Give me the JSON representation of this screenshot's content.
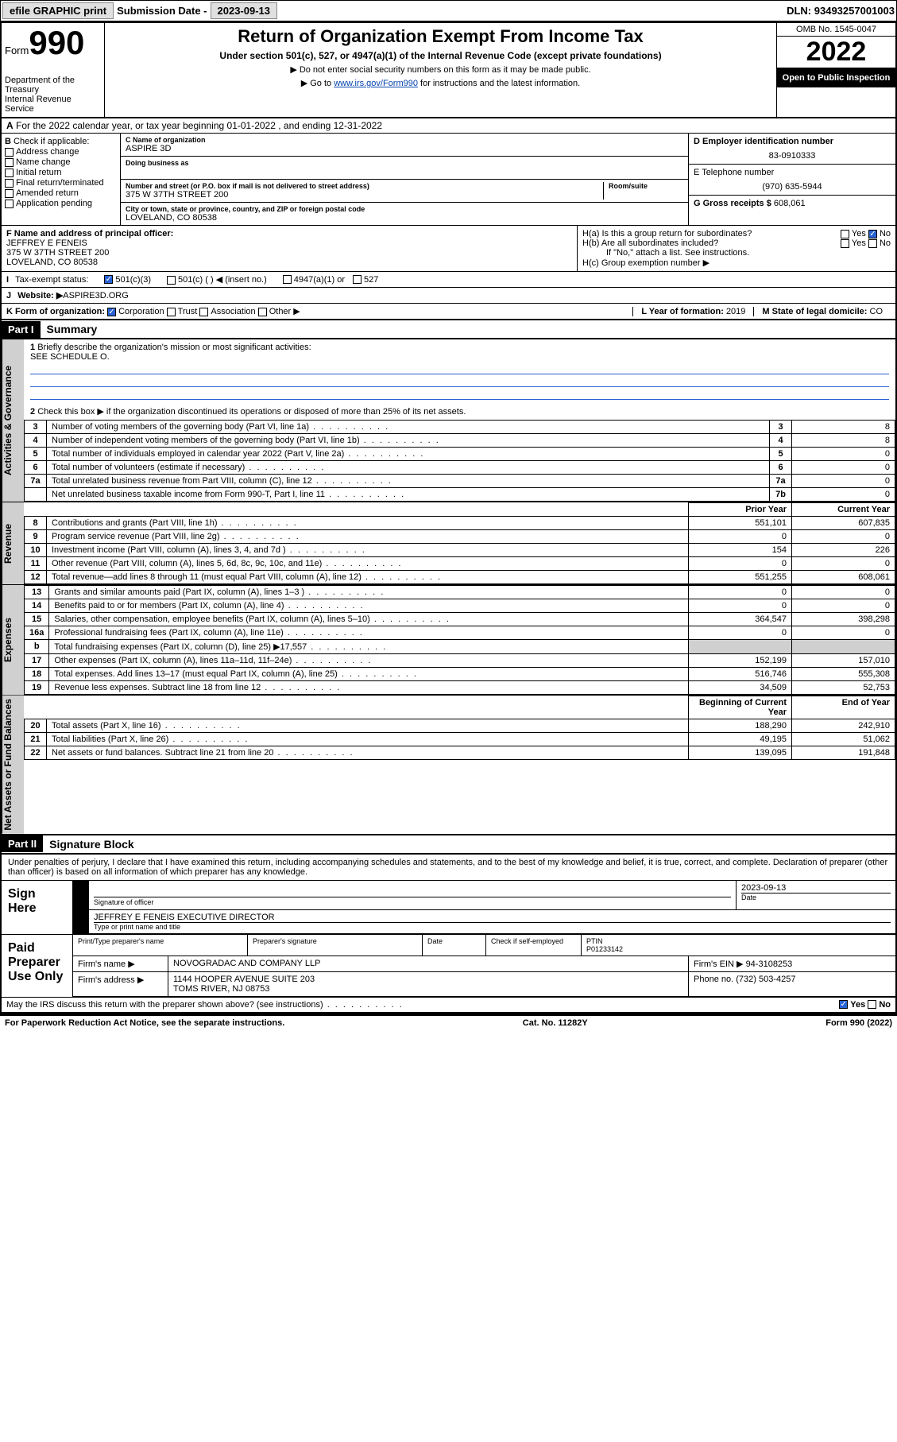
{
  "topbar": {
    "efile": "efile GRAPHIC print",
    "submission_label": "Submission Date - ",
    "submission_date": "2023-09-13",
    "dln_label": "DLN: ",
    "dln": "93493257001003"
  },
  "header": {
    "form_word": "Form",
    "form_num": "990",
    "dept": "Department of the Treasury",
    "irs": "Internal Revenue Service",
    "title": "Return of Organization Exempt From Income Tax",
    "subtitle": "Under section 501(c), 527, or 4947(a)(1) of the Internal Revenue Code (except private foundations)",
    "note1": "Do not enter social security numbers on this form as it may be made public.",
    "note2_pre": "Go to ",
    "note2_link": "www.irs.gov/Form990",
    "note2_post": " for instructions and the latest information.",
    "omb": "OMB No. 1545-0047",
    "year": "2022",
    "open": "Open to Public Inspection"
  },
  "rowA": {
    "text": "For the 2022 calendar year, or tax year beginning 01-01-2022   , and ending 12-31-2022"
  },
  "colB": {
    "label": "Check if applicable:",
    "i1": "Address change",
    "i2": "Name change",
    "i3": "Initial return",
    "i4": "Final return/terminated",
    "i5": "Amended return",
    "i6": "Application pending"
  },
  "colC": {
    "name_label": "C Name of organization",
    "name": "ASPIRE 3D",
    "dba_label": "Doing business as",
    "addr_label": "Number and street (or P.O. box if mail is not delivered to street address)",
    "room_label": "Room/suite",
    "addr": "375 W 37TH STREET 200",
    "city_label": "City or town, state or province, country, and ZIP or foreign postal code",
    "city": "LOVELAND, CO  80538"
  },
  "colD": {
    "ein_label": "D Employer identification number",
    "ein": "83-0910333",
    "phone_label": "E Telephone number",
    "phone": "(970) 635-5944",
    "gross_label": "G Gross receipts $ ",
    "gross": "608,061"
  },
  "rowF": {
    "label": "F  Name and address of principal officer:",
    "name": "JEFFREY E FENEIS",
    "addr1": "375 W 37TH STREET 200",
    "addr2": "LOVELAND, CO  80538"
  },
  "rowH": {
    "ha": "H(a)  Is this a group return for subordinates?",
    "hb": "H(b)  Are all subordinates included?",
    "hb_note": "If \"No,\" attach a list. See instructions.",
    "hc": "H(c)  Group exemption number ▶",
    "yes": "Yes",
    "no": "No"
  },
  "rowI": {
    "label": "Tax-exempt status:",
    "o1": "501(c)(3)",
    "o2": "501(c) (  ) ◀ (insert no.)",
    "o3": "4947(a)(1) or",
    "o4": "527"
  },
  "rowJ": {
    "label": "Website: ▶",
    "val": "ASPIRE3D.ORG"
  },
  "rowK": {
    "label": "K Form of organization:",
    "o1": "Corporation",
    "o2": "Trust",
    "o3": "Association",
    "o4": "Other ▶"
  },
  "rowL": {
    "label": "L Year of formation: ",
    "val": "2019"
  },
  "rowM": {
    "label": "M State of legal domicile: ",
    "val": "CO"
  },
  "part1": {
    "hdr": "Part I",
    "title": "Summary",
    "l1": "Briefly describe the organization's mission or most significant activities:",
    "l1v": "SEE SCHEDULE O.",
    "l2": "Check this box ▶        if the organization discontinued its operations or disposed of more than 25% of its net assets.",
    "prior": "Prior Year",
    "current": "Current Year",
    "beg": "Beginning of Current Year",
    "end": "End of Year"
  },
  "sideLabels": {
    "gov": "Activities & Governance",
    "rev": "Revenue",
    "exp": "Expenses",
    "net": "Net Assets or Fund Balances"
  },
  "govRows": [
    {
      "n": "3",
      "d": "Number of voting members of the governing body (Part VI, line 1a)",
      "c": "3",
      "v": "8"
    },
    {
      "n": "4",
      "d": "Number of independent voting members of the governing body (Part VI, line 1b)",
      "c": "4",
      "v": "8"
    },
    {
      "n": "5",
      "d": "Total number of individuals employed in calendar year 2022 (Part V, line 2a)",
      "c": "5",
      "v": "0"
    },
    {
      "n": "6",
      "d": "Total number of volunteers (estimate if necessary)",
      "c": "6",
      "v": "0"
    },
    {
      "n": "7a",
      "d": "Total unrelated business revenue from Part VIII, column (C), line 12",
      "c": "7a",
      "v": "0"
    },
    {
      "n": "",
      "d": "Net unrelated business taxable income from Form 990-T, Part I, line 11",
      "c": "7b",
      "v": "0"
    }
  ],
  "revRows": [
    {
      "n": "8",
      "d": "Contributions and grants (Part VIII, line 1h)",
      "p": "551,101",
      "c": "607,835"
    },
    {
      "n": "9",
      "d": "Program service revenue (Part VIII, line 2g)",
      "p": "0",
      "c": "0"
    },
    {
      "n": "10",
      "d": "Investment income (Part VIII, column (A), lines 3, 4, and 7d )",
      "p": "154",
      "c": "226"
    },
    {
      "n": "11",
      "d": "Other revenue (Part VIII, column (A), lines 5, 6d, 8c, 9c, 10c, and 11e)",
      "p": "0",
      "c": "0"
    },
    {
      "n": "12",
      "d": "Total revenue—add lines 8 through 11 (must equal Part VIII, column (A), line 12)",
      "p": "551,255",
      "c": "608,061"
    }
  ],
  "expRows": [
    {
      "n": "13",
      "d": "Grants and similar amounts paid (Part IX, column (A), lines 1–3 )",
      "p": "0",
      "c": "0"
    },
    {
      "n": "14",
      "d": "Benefits paid to or for members (Part IX, column (A), line 4)",
      "p": "0",
      "c": "0"
    },
    {
      "n": "15",
      "d": "Salaries, other compensation, employee benefits (Part IX, column (A), lines 5–10)",
      "p": "364,547",
      "c": "398,298"
    },
    {
      "n": "16a",
      "d": "Professional fundraising fees (Part IX, column (A), line 11e)",
      "p": "0",
      "c": "0"
    },
    {
      "n": "b",
      "d": "Total fundraising expenses (Part IX, column (D), line 25) ▶17,557",
      "p": "",
      "c": ""
    },
    {
      "n": "17",
      "d": "Other expenses (Part IX, column (A), lines 11a–11d, 11f–24e)",
      "p": "152,199",
      "c": "157,010"
    },
    {
      "n": "18",
      "d": "Total expenses. Add lines 13–17 (must equal Part IX, column (A), line 25)",
      "p": "516,746",
      "c": "555,308"
    },
    {
      "n": "19",
      "d": "Revenue less expenses. Subtract line 18 from line 12",
      "p": "34,509",
      "c": "52,753"
    }
  ],
  "netRows": [
    {
      "n": "20",
      "d": "Total assets (Part X, line 16)",
      "p": "188,290",
      "c": "242,910"
    },
    {
      "n": "21",
      "d": "Total liabilities (Part X, line 26)",
      "p": "49,195",
      "c": "51,062"
    },
    {
      "n": "22",
      "d": "Net assets or fund balances. Subtract line 21 from line 20",
      "p": "139,095",
      "c": "191,848"
    }
  ],
  "part2": {
    "hdr": "Part II",
    "title": "Signature Block",
    "declare": "Under penalties of perjury, I declare that I have examined this return, including accompanying schedules and statements, and to the best of my knowledge and belief, it is true, correct, and complete. Declaration of preparer (other than officer) is based on all information of which preparer has any knowledge."
  },
  "sign": {
    "here": "Sign Here",
    "sig_label": "Signature of officer",
    "date_label": "Date",
    "date": "2023-09-13",
    "name": "JEFFREY E FENEIS  EXECUTIVE DIRECTOR",
    "name_label": "Type or print name and title"
  },
  "prep": {
    "title": "Paid Preparer Use Only",
    "c1": "Print/Type preparer's name",
    "c2": "Preparer's signature",
    "c3": "Date",
    "c4a": "Check        if self-employed",
    "c4b": "PTIN",
    "ptin": "P01233142",
    "firm_label": "Firm's name    ▶",
    "firm": "NOVOGRADAC AND COMPANY LLP",
    "ein_label": "Firm's EIN ▶",
    "ein": "94-3108253",
    "addr_label": "Firm's address ▶",
    "addr1": "1144 HOOPER AVENUE SUITE 203",
    "addr2": "TOMS RIVER, NJ  08753",
    "phone_label": "Phone no. ",
    "phone": "(732) 503-4257"
  },
  "discuss": {
    "q": "May the IRS discuss this return with the preparer shown above? (see instructions)",
    "yes": "Yes",
    "no": "No"
  },
  "footer": {
    "left": "For Paperwork Reduction Act Notice, see the separate instructions.",
    "mid": "Cat. No. 11282Y",
    "right": "Form 990 (2022)"
  }
}
